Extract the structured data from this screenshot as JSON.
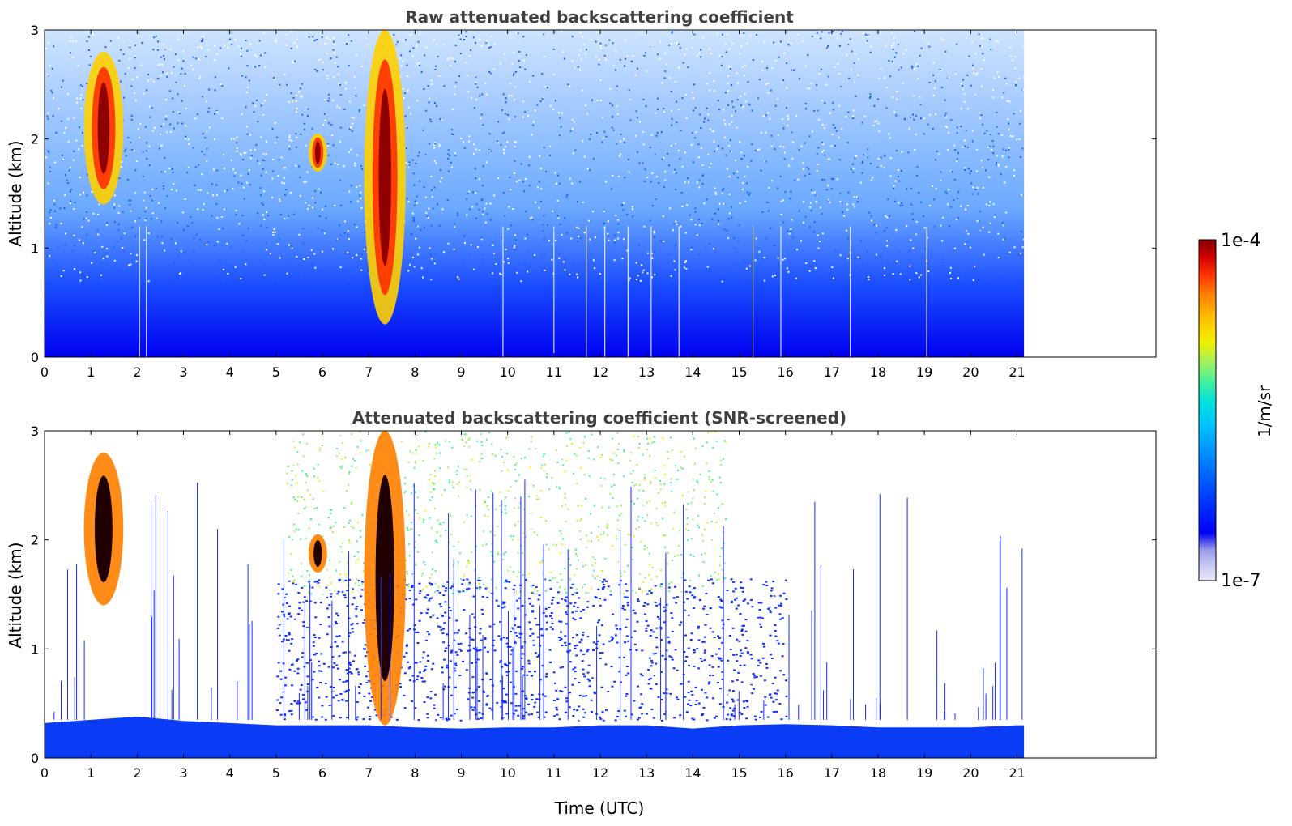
{
  "chart_data": [
    {
      "type": "heatmap",
      "title": "Raw attenuated backscattering coefficient",
      "xlabel": "",
      "ylabel": "Altitude (km)",
      "xlim": [
        0,
        24
      ],
      "ylim": [
        0,
        3
      ],
      "xticks": [
        0,
        1,
        2,
        3,
        4,
        5,
        6,
        7,
        8,
        9,
        10,
        11,
        12,
        13,
        14,
        15,
        16,
        17,
        18,
        19,
        20,
        21
      ],
      "yticks": [
        0,
        1,
        2,
        3
      ],
      "data_end_hour": 21.15,
      "features": [
        {
          "name": "cloud",
          "x": [
            0.85,
            1.7
          ],
          "y": [
            1.4,
            2.8
          ]
        },
        {
          "name": "cloud",
          "x": [
            5.7,
            6.1
          ],
          "y": [
            1.7,
            2.05
          ]
        },
        {
          "name": "plume",
          "x": [
            6.9,
            7.8
          ],
          "y": [
            0.3,
            3.0
          ]
        }
      ],
      "clear_columns_hours": [
        2.05,
        2.2,
        9.9,
        11.0,
        11.7,
        12.1,
        12.6,
        13.1,
        13.7,
        15.3,
        15.9,
        17.4,
        19.05
      ]
    },
    {
      "type": "heatmap",
      "title": "Attenuated backscattering coefficient (SNR-screened)",
      "xlabel": "Time (UTC)",
      "ylabel": "Altitude (km)",
      "xlim": [
        0,
        24
      ],
      "ylim": [
        0,
        3
      ],
      "xticks": [
        0,
        1,
        2,
        3,
        4,
        5,
        6,
        7,
        8,
        9,
        10,
        11,
        12,
        13,
        14,
        15,
        16,
        17,
        18,
        19,
        20,
        21
      ],
      "yticks": [
        0,
        1,
        2,
        3
      ],
      "data_end_hour": 21.15,
      "boundary_layer_top_km": [
        0.32,
        0.35,
        0.38,
        0.34,
        0.32,
        0.3,
        0.3,
        0.3,
        0.28,
        0.27,
        0.28,
        0.28,
        0.3,
        0.3,
        0.27,
        0.3,
        0.31,
        0.3,
        0.28,
        0.28,
        0.28,
        0.3
      ]
    }
  ],
  "colorbar": {
    "label": "1/m/sr",
    "max_label": "1e-4",
    "min_label": "1e-7",
    "scale": "log",
    "range": [
      1e-07,
      0.0001
    ],
    "colors": [
      "#e8e8fa",
      "#c4c4f2",
      "#9a9aea",
      "#0000f5",
      "#0040ff",
      "#0080ff",
      "#00bfff",
      "#00e0e0",
      "#40f0a0",
      "#a0f060",
      "#f0f000",
      "#ffbf00",
      "#ff7f00",
      "#ff3000",
      "#d00000",
      "#800000"
    ]
  }
}
